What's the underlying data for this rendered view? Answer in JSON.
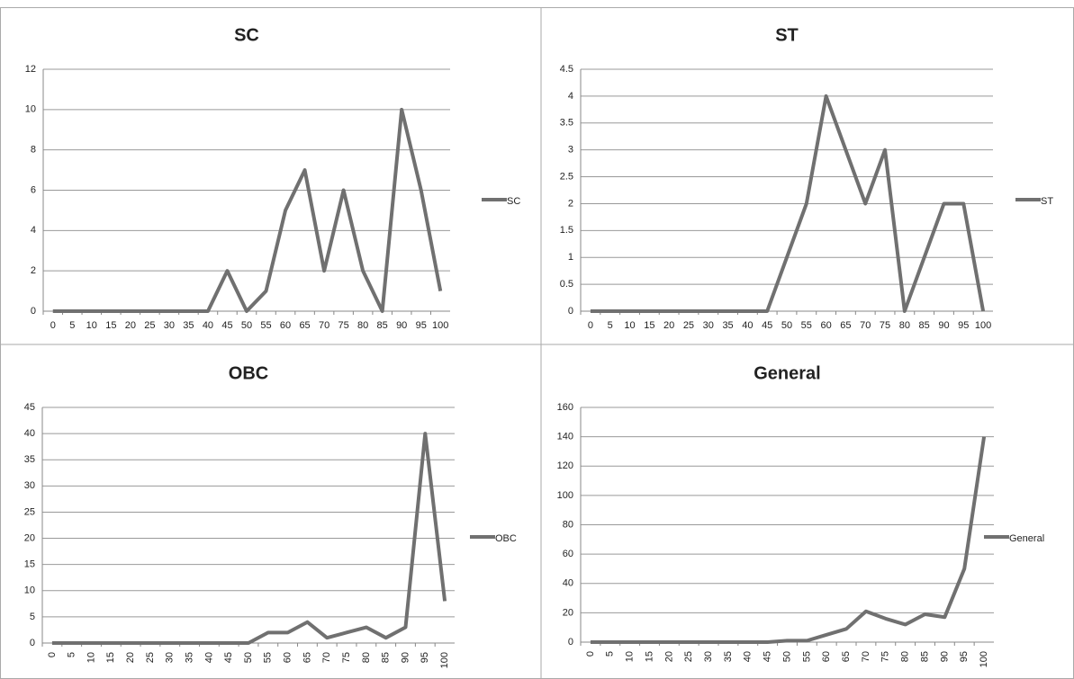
{
  "chart_data": [
    {
      "type": "line",
      "title": "SC",
      "categories": [
        "0",
        "5",
        "10",
        "15",
        "20",
        "25",
        "30",
        "35",
        "40",
        "45",
        "50",
        "55",
        "60",
        "65",
        "70",
        "75",
        "80",
        "85",
        "90",
        "95",
        "100"
      ],
      "series": [
        {
          "name": "SC",
          "color": "#707070",
          "values": [
            0,
            0,
            0,
            0,
            0,
            0,
            0,
            0,
            0,
            2,
            0,
            1,
            5,
            7,
            2,
            6,
            2,
            0,
            10,
            6,
            1
          ]
        }
      ],
      "ylim": [
        0,
        12
      ],
      "yticks": [
        0,
        2,
        4,
        6,
        8,
        10,
        12
      ],
      "grid": true,
      "legend": "right"
    },
    {
      "type": "line",
      "title": "ST",
      "categories": [
        "0",
        "5",
        "10",
        "15",
        "20",
        "25",
        "30",
        "35",
        "40",
        "45",
        "50",
        "55",
        "60",
        "65",
        "70",
        "75",
        "80",
        "85",
        "90",
        "95",
        "100"
      ],
      "series": [
        {
          "name": "ST",
          "color": "#707070",
          "values": [
            0,
            0,
            0,
            0,
            0,
            0,
            0,
            0,
            0,
            0,
            1,
            2,
            4,
            3,
            2,
            3,
            0,
            1,
            2,
            2,
            0
          ]
        }
      ],
      "ylim": [
        0,
        4.5
      ],
      "yticks": [
        0,
        0.5,
        1,
        1.5,
        2,
        2.5,
        3,
        3.5,
        4,
        4.5
      ],
      "grid": true,
      "legend": "right"
    },
    {
      "type": "line",
      "title": "OBC",
      "categories": [
        "0",
        "5",
        "10",
        "15",
        "20",
        "25",
        "30",
        "35",
        "40",
        "45",
        "50",
        "55",
        "60",
        "65",
        "70",
        "75",
        "80",
        "85",
        "90",
        "95",
        "100"
      ],
      "series": [
        {
          "name": "OBC",
          "color": "#707070",
          "values": [
            0,
            0,
            0,
            0,
            0,
            0,
            0,
            0,
            0,
            0,
            0,
            2,
            2,
            4,
            1,
            2,
            3,
            1,
            3,
            40,
            8
          ]
        }
      ],
      "ylim": [
        0,
        45
      ],
      "yticks": [
        0,
        5,
        10,
        15,
        20,
        25,
        30,
        35,
        40,
        45
      ],
      "grid": true,
      "legend": "right"
    },
    {
      "type": "line",
      "title": "General",
      "categories": [
        "0",
        "5",
        "10",
        "15",
        "20",
        "25",
        "30",
        "35",
        "40",
        "45",
        "50",
        "55",
        "60",
        "65",
        "70",
        "75",
        "80",
        "85",
        "90",
        "95",
        "100"
      ],
      "series": [
        {
          "name": "General",
          "color": "#707070",
          "values": [
            0,
            0,
            0,
            0,
            0,
            0,
            0,
            0,
            0,
            0,
            1,
            1,
            5,
            9,
            21,
            16,
            12,
            19,
            17,
            50,
            140
          ]
        }
      ],
      "ylim": [
        0,
        160
      ],
      "yticks": [
        0,
        20,
        40,
        60,
        80,
        100,
        120,
        140,
        160
      ],
      "grid": true,
      "legend": "right"
    }
  ]
}
